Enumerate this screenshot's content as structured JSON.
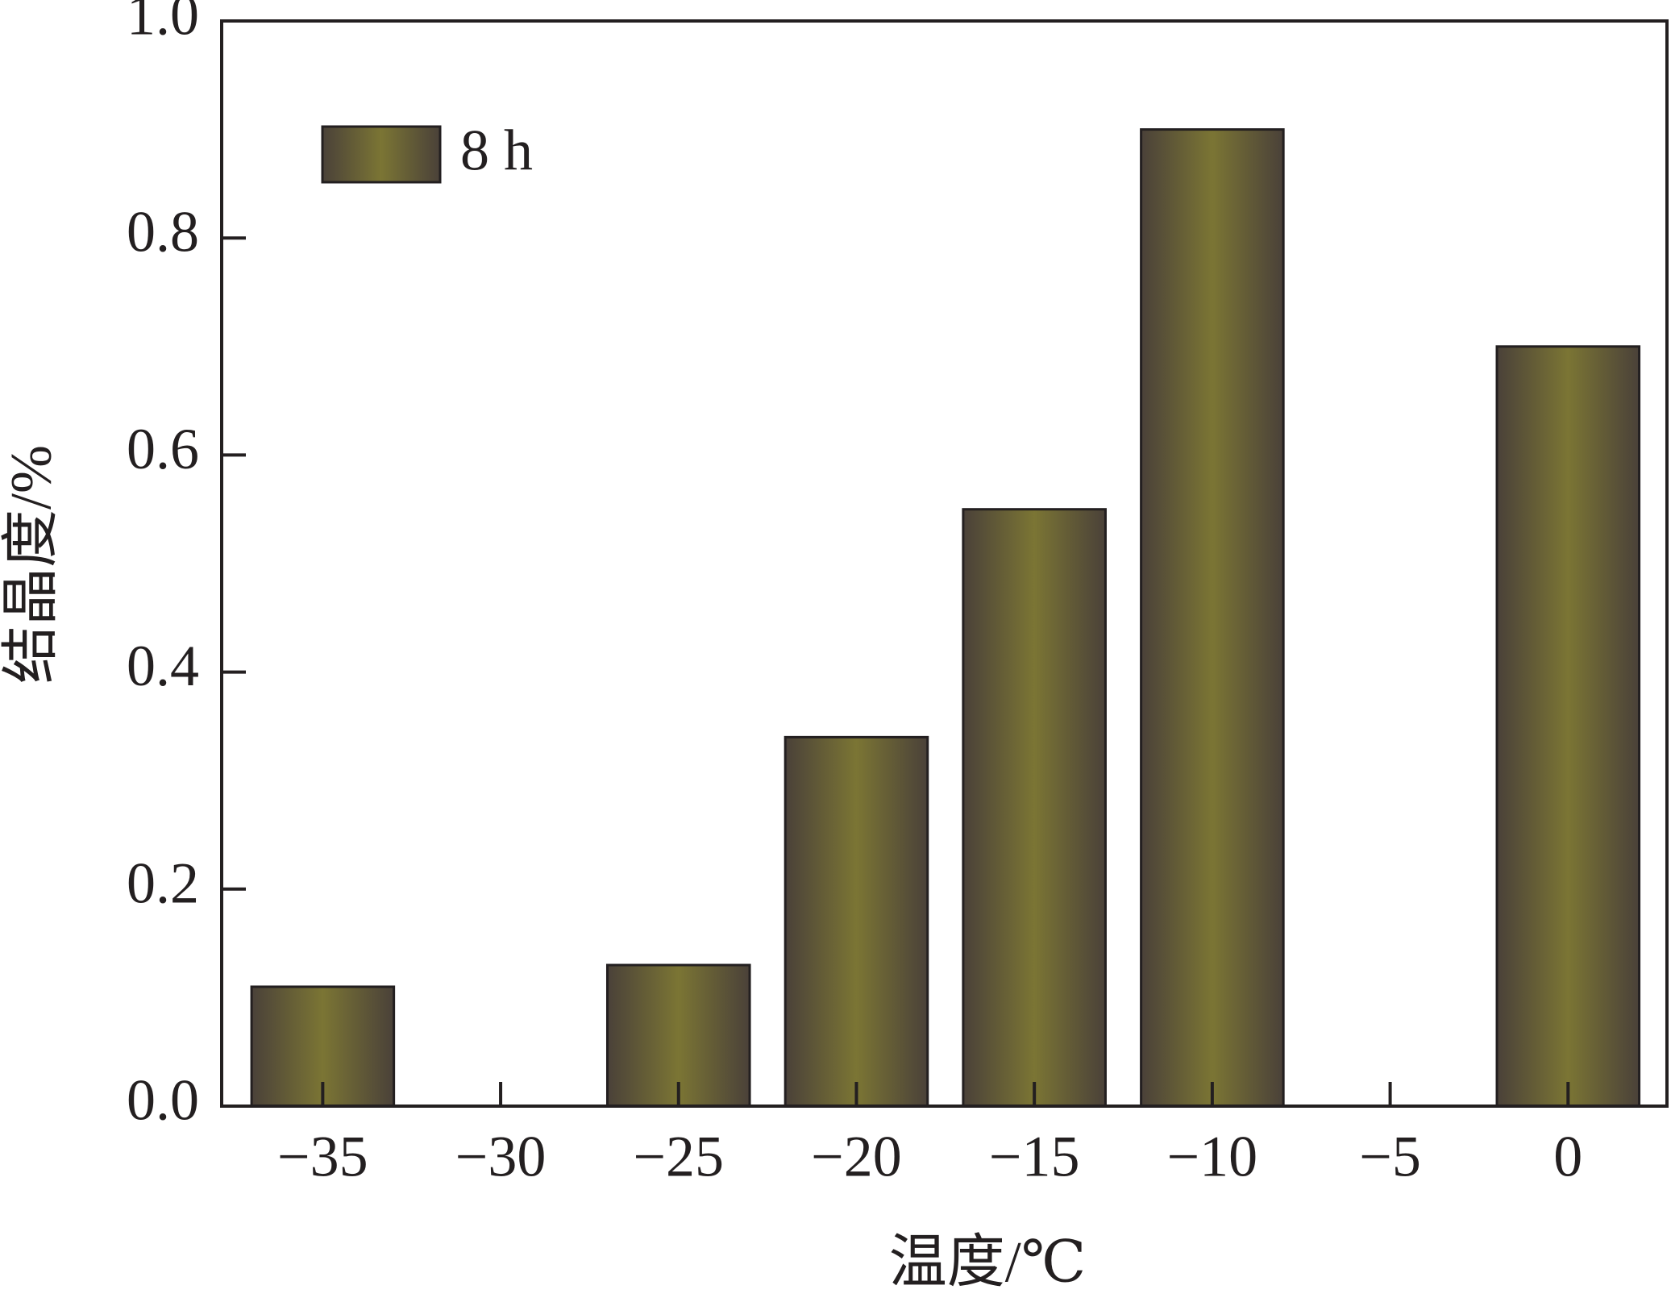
{
  "chart_data": {
    "type": "bar",
    "x_label": "温度/℃",
    "y_label": "结晶度/%",
    "x": [
      -35,
      -25,
      -20,
      -15,
      -10,
      0
    ],
    "series": [
      {
        "name": "8 h",
        "color": "#7b7534",
        "edge_color": "#4a4139",
        "values": [
          0.11,
          0.13,
          0.34,
          0.55,
          0.9,
          0.7
        ]
      }
    ],
    "bar_width": 4,
    "xlim": [
      -37.84,
      2.78
    ],
    "xticks": [
      {
        "value": -35,
        "label": "−35"
      },
      {
        "value": -30,
        "label": "−30"
      },
      {
        "value": -25,
        "label": "−25"
      },
      {
        "value": -20,
        "label": "−20"
      },
      {
        "value": -15,
        "label": "−15"
      },
      {
        "value": -10,
        "label": "−10"
      },
      {
        "value": -5,
        "label": "−5"
      },
      0
    ],
    "ylim": [
      0,
      1
    ],
    "yticks": [
      {
        "value": 0,
        "label": "0.0"
      },
      0.2,
      0.4,
      0.6,
      0.8,
      {
        "value": 1,
        "label": "1.0"
      }
    ],
    "legend": "upper left"
  }
}
